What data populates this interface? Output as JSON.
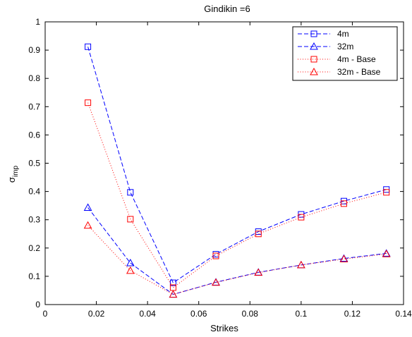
{
  "chart_data": {
    "type": "line",
    "title": "Gindikin =6",
    "xlabel": "Strikes",
    "ylabel_main": "σ",
    "ylabel_sub": "imp",
    "xlim": [
      0,
      0.14
    ],
    "ylim": [
      0,
      1
    ],
    "xticks": [
      0,
      0.02,
      0.04,
      0.06,
      0.08,
      0.1,
      0.12,
      0.14
    ],
    "xtick_labels": [
      "0",
      "0.02",
      "0.04",
      "0.06",
      "0.08",
      "0.1",
      "0.12",
      "0.14"
    ],
    "yticks": [
      0,
      0.1,
      0.2,
      0.3,
      0.4,
      0.5,
      0.6,
      0.7,
      0.8,
      0.9,
      1
    ],
    "ytick_labels": [
      "0",
      "0.1",
      "0.2",
      "0.3",
      "0.4",
      "0.5",
      "0.6",
      "0.7",
      "0.8",
      "0.9",
      "1"
    ],
    "grid": false,
    "legend_position": "top-right",
    "x": [
      0.0167,
      0.0333,
      0.05,
      0.0667,
      0.0833,
      0.1,
      0.1167,
      0.1333
    ],
    "series": [
      {
        "name": "4m",
        "color": "#0000ff",
        "marker": "square",
        "line": "dashed",
        "values": [
          0.912,
          0.397,
          0.077,
          0.178,
          0.258,
          0.319,
          0.366,
          0.407
        ]
      },
      {
        "name": "32m",
        "color": "#0000ff",
        "marker": "triangle",
        "line": "dashed",
        "values": [
          0.343,
          0.147,
          0.036,
          0.079,
          0.114,
          0.14,
          0.163,
          0.181
        ]
      },
      {
        "name": "4m - Base",
        "color": "#ff0000",
        "marker": "square",
        "line": "dotted",
        "values": [
          0.714,
          0.302,
          0.06,
          0.172,
          0.25,
          0.309,
          0.357,
          0.397
        ]
      },
      {
        "name": "32m - Base",
        "color": "#ff0000",
        "marker": "triangle",
        "line": "dotted",
        "values": [
          0.28,
          0.12,
          0.036,
          0.078,
          0.113,
          0.14,
          0.161,
          0.179
        ]
      }
    ]
  }
}
